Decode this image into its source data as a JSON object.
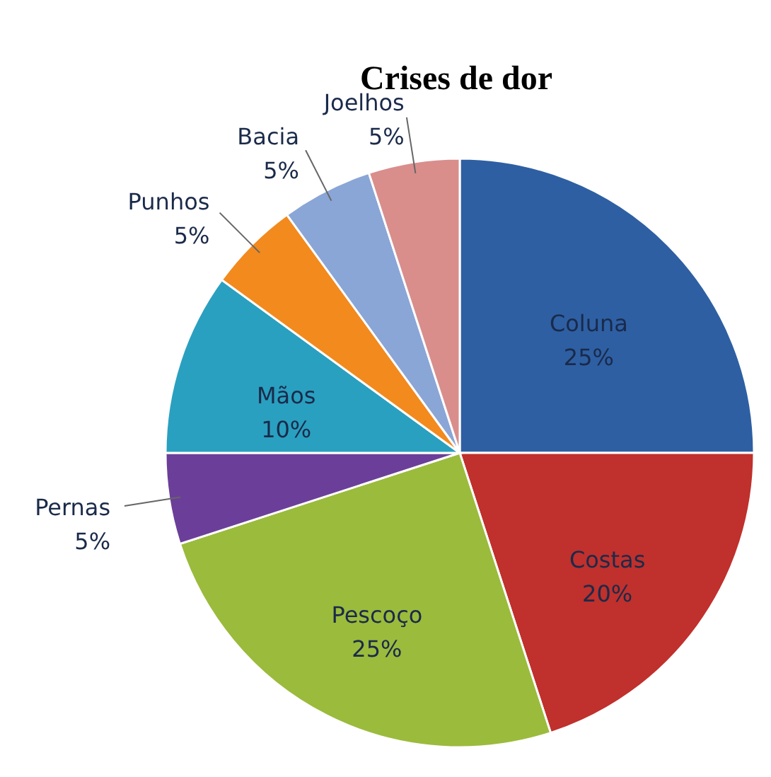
{
  "chart_data": {
    "type": "pie",
    "title": "Crises de dor",
    "categories": [
      "Coluna",
      "Costas",
      "Pescoço",
      "Pernas",
      "Mãos",
      "Punhos",
      "Bacia",
      "Joelhos"
    ],
    "values": [
      25,
      20,
      25,
      5,
      10,
      5,
      5,
      5
    ],
    "value_labels": [
      "25%",
      "20%",
      "25%",
      "5%",
      "10%",
      "5%",
      "5%",
      "5%"
    ],
    "colors": [
      "#2e5fa3",
      "#c0302c",
      "#9bbb3c",
      "#6b3f99",
      "#2aa0c0",
      "#f28a1e",
      "#8aa6d6",
      "#d98e8c"
    ],
    "legend": false
  }
}
